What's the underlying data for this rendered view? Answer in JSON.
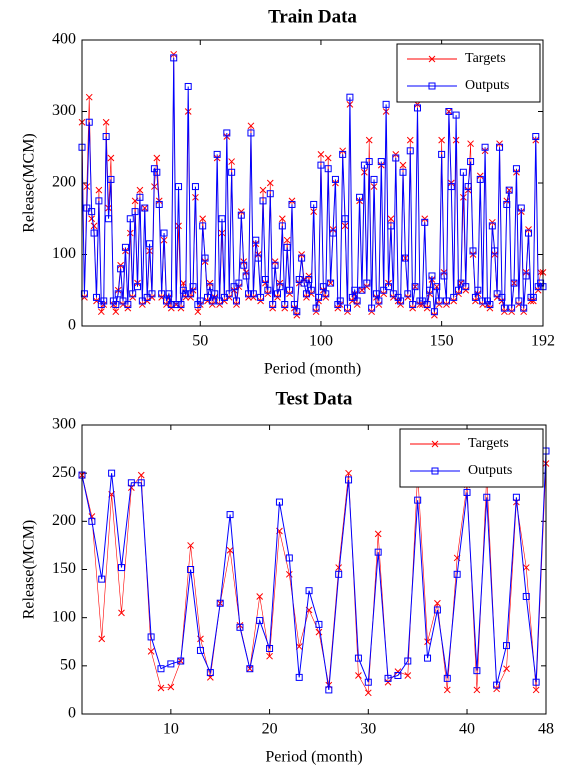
{
  "chart_data": [
    {
      "type": "line",
      "title": "Train Data",
      "x_label": "Period (month)",
      "y_label": "Release(MCM)",
      "xlim": [
        1,
        192
      ],
      "xticks": [
        50,
        100,
        150,
        192
      ],
      "ylim": [
        0,
        400
      ],
      "yticks": [
        0,
        100,
        200,
        300,
        400
      ],
      "legend": "upper right",
      "x": [
        1,
        2,
        3,
        4,
        5,
        6,
        7,
        8,
        9,
        10,
        11,
        12,
        13,
        14,
        15,
        16,
        17,
        18,
        19,
        20,
        21,
        22,
        23,
        24,
        25,
        26,
        27,
        28,
        29,
        30,
        31,
        32,
        33,
        34,
        35,
        36,
        37,
        38,
        39,
        40,
        41,
        42,
        43,
        44,
        45,
        46,
        47,
        48,
        49,
        50,
        51,
        52,
        53,
        54,
        55,
        56,
        57,
        58,
        59,
        60,
        61,
        62,
        63,
        64,
        65,
        66,
        67,
        68,
        69,
        70,
        71,
        72,
        73,
        74,
        75,
        76,
        77,
        78,
        79,
        80,
        81,
        82,
        83,
        84,
        85,
        86,
        87,
        88,
        89,
        90,
        91,
        92,
        93,
        94,
        95,
        96,
        97,
        98,
        99,
        100,
        101,
        102,
        103,
        104,
        105,
        106,
        107,
        108,
        109,
        110,
        111,
        112,
        113,
        114,
        115,
        116,
        117,
        118,
        119,
        120,
        121,
        122,
        123,
        124,
        125,
        126,
        127,
        128,
        129,
        130,
        131,
        132,
        133,
        134,
        135,
        136,
        137,
        138,
        139,
        140,
        141,
        142,
        143,
        144,
        145,
        146,
        147,
        148,
        149,
        150,
        151,
        152,
        153,
        154,
        155,
        156,
        157,
        158,
        159,
        160,
        161,
        162,
        163,
        164,
        165,
        166,
        167,
        168,
        169,
        170,
        171,
        172,
        173,
        174,
        175,
        176,
        177,
        178,
        179,
        180,
        181,
        182,
        183,
        184,
        185,
        186,
        187,
        188,
        189,
        190,
        191,
        192
      ],
      "series": [
        {
          "name": "Targets",
          "color": "#ff0000",
          "marker": "x",
          "values": [
            285,
            40,
            195,
            320,
            150,
            140,
            35,
            190,
            20,
            30,
            285,
            165,
            235,
            30,
            20,
            50,
            85,
            30,
            105,
            25,
            130,
            40,
            175,
            60,
            190,
            30,
            165,
            35,
            105,
            40,
            195,
            235,
            175,
            40,
            120,
            30,
            40,
            25,
            380,
            30,
            140,
            25,
            60,
            40,
            300,
            40,
            50,
            180,
            20,
            30,
            150,
            90,
            35,
            60,
            30,
            40,
            235,
            30,
            130,
            35,
            265,
            40,
            230,
            50,
            30,
            55,
            160,
            90,
            75,
            40,
            280,
            40,
            115,
            100,
            35,
            190,
            60,
            45,
            200,
            25,
            90,
            40,
            60,
            150,
            25,
            120,
            45,
            175,
            25,
            15,
            60,
            100,
            65,
            40,
            70,
            45,
            160,
            20,
            35,
            240,
            50,
            40,
            235,
            60,
            135,
            200,
            25,
            30,
            245,
            140,
            20,
            310,
            35,
            45,
            30,
            175,
            50,
            215,
            55,
            260,
            20,
            195,
            40,
            30,
            225,
            45,
            300,
            60,
            150,
            40,
            240,
            35,
            30,
            225,
            95,
            40,
            260,
            25,
            55,
            310,
            30,
            30,
            150,
            25,
            45,
            65,
            15,
            55,
            30,
            260,
            75,
            30,
            300,
            200,
            35,
            260,
            45,
            60,
            180,
            50,
            190,
            255,
            100,
            35,
            45,
            210,
            30,
            245,
            30,
            25,
            145,
            100,
            40,
            255,
            35,
            20,
            175,
            190,
            20,
            60,
            215,
            30,
            160,
            20,
            75,
            135,
            35,
            35,
            260,
            50,
            75,
            75
          ]
        },
        {
          "name": "Outputs",
          "color": "#0000ff",
          "marker": "square",
          "values": [
            250,
            45,
            165,
            285,
            160,
            130,
            40,
            175,
            30,
            35,
            265,
            150,
            205,
            35,
            30,
            45,
            80,
            35,
            110,
            30,
            150,
            45,
            160,
            55,
            180,
            35,
            165,
            40,
            115,
            45,
            220,
            215,
            170,
            45,
            130,
            35,
            45,
            30,
            375,
            30,
            195,
            30,
            50,
            45,
            335,
            45,
            55,
            195,
            30,
            35,
            140,
            95,
            40,
            55,
            35,
            45,
            240,
            35,
            150,
            40,
            270,
            45,
            215,
            55,
            35,
            60,
            155,
            85,
            70,
            45,
            270,
            45,
            120,
            95,
            40,
            175,
            65,
            50,
            185,
            30,
            85,
            45,
            55,
            140,
            30,
            110,
            50,
            170,
            30,
            20,
            65,
            95,
            60,
            45,
            65,
            50,
            170,
            25,
            40,
            225,
            55,
            45,
            220,
            60,
            130,
            205,
            30,
            35,
            240,
            150,
            25,
            320,
            40,
            50,
            35,
            180,
            50,
            225,
            60,
            230,
            25,
            205,
            45,
            35,
            230,
            50,
            310,
            55,
            140,
            45,
            235,
            40,
            35,
            215,
            95,
            45,
            245,
            30,
            55,
            305,
            35,
            35,
            145,
            30,
            50,
            70,
            20,
            55,
            35,
            240,
            70,
            35,
            300,
            195,
            40,
            295,
            50,
            60,
            215,
            55,
            195,
            230,
            105,
            40,
            50,
            205,
            35,
            250,
            35,
            30,
            140,
            105,
            45,
            250,
            40,
            25,
            170,
            190,
            25,
            60,
            220,
            35,
            165,
            25,
            70,
            130,
            40,
            40,
            265,
            55,
            60,
            55
          ]
        }
      ]
    },
    {
      "type": "line",
      "title": "Test Data",
      "x_label": "Period (month)",
      "y_label": "Release(MCM)",
      "xlim": [
        1,
        48
      ],
      "xticks": [
        10,
        20,
        30,
        40,
        48
      ],
      "ylim": [
        0,
        300
      ],
      "yticks": [
        0,
        50,
        100,
        150,
        200,
        250,
        300
      ],
      "legend": "upper right",
      "x": [
        1,
        2,
        3,
        4,
        5,
        6,
        7,
        8,
        9,
        10,
        11,
        12,
        13,
        14,
        15,
        16,
        17,
        18,
        19,
        20,
        21,
        22,
        23,
        24,
        25,
        26,
        27,
        28,
        29,
        30,
        31,
        32,
        33,
        34,
        35,
        36,
        37,
        38,
        39,
        40,
        41,
        42,
        43,
        44,
        45,
        46,
        47,
        48
      ],
      "series": [
        {
          "name": "Targets",
          "color": "#ff0000",
          "marker": "x",
          "values": [
            248,
            205,
            78,
            228,
            105,
            235,
            248,
            65,
            27,
            28,
            55,
            175,
            78,
            38,
            115,
            170,
            92,
            47,
            122,
            60,
            190,
            145,
            70,
            108,
            85,
            30,
            152,
            250,
            40,
            22,
            187,
            33,
            44,
            40,
            250,
            75,
            115,
            25,
            162,
            238,
            25,
            248,
            26,
            47,
            220,
            152,
            25,
            260
          ]
        },
        {
          "name": "Outputs",
          "color": "#0000ff",
          "marker": "square",
          "values": [
            248,
            200,
            140,
            250,
            152,
            240,
            240,
            80,
            47,
            52,
            55,
            150,
            66,
            43,
            115,
            207,
            90,
            47,
            97,
            68,
            220,
            162,
            38,
            128,
            93,
            25,
            145,
            243,
            58,
            33,
            168,
            37,
            40,
            55,
            222,
            58,
            108,
            37,
            145,
            230,
            45,
            225,
            30,
            71,
            225,
            122,
            33,
            273
          ]
        }
      ]
    }
  ]
}
